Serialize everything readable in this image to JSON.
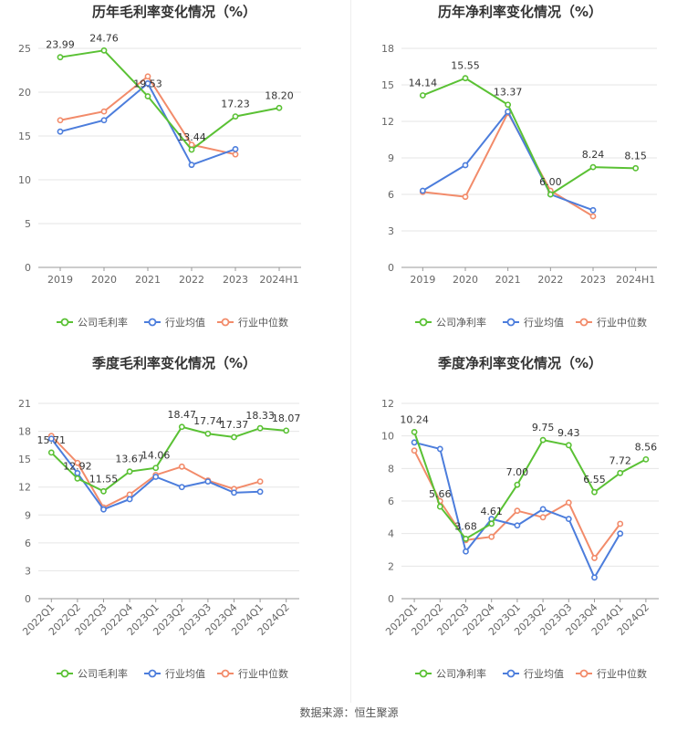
{
  "footer": {
    "source": "数据来源：恒生聚源"
  },
  "colors": {
    "company": "#5ac134",
    "industry_avg": "#4c7ddc",
    "industry_median": "#f28b6a",
    "grid": "#e6e6e6",
    "axis_text": "#666666"
  },
  "legend_labels": {
    "p1": [
      "公司毛利率",
      "行业均值",
      "行业中位数"
    ],
    "p2": [
      "公司净利率",
      "行业均值",
      "行业中位数"
    ],
    "p3": [
      "公司毛利率",
      "行业均值",
      "行业中位数"
    ],
    "p4": [
      "公司净利率",
      "行业均值",
      "行业中位数"
    ]
  },
  "chart_data": [
    {
      "type": "line",
      "title": "历年毛利率变化情况（%）",
      "categories": [
        "2019",
        "2020",
        "2021",
        "2022",
        "2023",
        "2024H1"
      ],
      "ylim": [
        0,
        25
      ],
      "yticks": [
        0,
        5,
        10,
        15,
        20,
        25
      ],
      "series": [
        {
          "name": "公司毛利率",
          "values": [
            23.99,
            24.76,
            19.53,
            13.44,
            17.23,
            18.2
          ],
          "labels": [
            "23.99",
            "24.76",
            "19.53",
            "13.44",
            "17.23",
            "18.20"
          ]
        },
        {
          "name": "行业均值",
          "values": [
            15.5,
            16.8,
            21.0,
            11.7,
            13.5,
            null
          ]
        },
        {
          "name": "行业中位数",
          "values": [
            16.8,
            17.8,
            21.8,
            14.0,
            12.9,
            null
          ]
        }
      ],
      "legend_position": "bottom",
      "grid": true
    },
    {
      "type": "line",
      "title": "历年净利率变化情况（%）",
      "categories": [
        "2019",
        "2020",
        "2021",
        "2022",
        "2023",
        "2024H1"
      ],
      "ylim": [
        0,
        18
      ],
      "yticks": [
        0,
        3,
        6,
        9,
        12,
        15,
        18
      ],
      "series": [
        {
          "name": "公司净利率",
          "values": [
            14.14,
            15.55,
            13.37,
            6.0,
            8.24,
            8.15
          ],
          "labels": [
            "14.14",
            "15.55",
            "13.37",
            "6.00",
            "8.24",
            "8.15"
          ]
        },
        {
          "name": "行业均值",
          "values": [
            6.3,
            8.4,
            12.8,
            6.0,
            4.7,
            null
          ]
        },
        {
          "name": "行业中位数",
          "values": [
            6.2,
            5.8,
            12.7,
            6.3,
            4.2,
            null
          ]
        }
      ],
      "legend_position": "bottom",
      "grid": true
    },
    {
      "type": "line",
      "title": "季度毛利率变化情况（%）",
      "categories": [
        "2022Q1",
        "2022Q2",
        "2022Q3",
        "2022Q4",
        "2023Q1",
        "2023Q2",
        "2023Q3",
        "2023Q4",
        "2024Q1",
        "2024Q2"
      ],
      "ylim": [
        0,
        21
      ],
      "yticks": [
        0,
        3,
        6,
        9,
        12,
        15,
        18,
        21
      ],
      "series": [
        {
          "name": "公司毛利率",
          "values": [
            15.71,
            12.92,
            11.55,
            13.67,
            14.06,
            18.47,
            17.74,
            17.37,
            18.33,
            18.07
          ],
          "labels": [
            "15.71",
            "12.92",
            "11.55",
            "13.67",
            "14.06",
            "18.47",
            "17.74",
            "17.37",
            "18.33",
            "18.07"
          ]
        },
        {
          "name": "行业均值",
          "values": [
            17.2,
            13.5,
            9.6,
            10.7,
            13.1,
            12.0,
            12.6,
            11.4,
            11.5,
            null
          ]
        },
        {
          "name": "行业中位数",
          "values": [
            17.5,
            14.6,
            9.8,
            11.2,
            13.3,
            14.2,
            12.7,
            11.8,
            12.6,
            null
          ]
        }
      ],
      "legend_position": "bottom",
      "grid": true
    },
    {
      "type": "line",
      "title": "季度净利率变化情况（%）",
      "categories": [
        "2022Q1",
        "2022Q2",
        "2022Q3",
        "2022Q4",
        "2023Q1",
        "2023Q2",
        "2023Q3",
        "2023Q4",
        "2024Q1",
        "2024Q2"
      ],
      "ylim": [
        0,
        12
      ],
      "yticks": [
        0,
        2,
        4,
        6,
        8,
        10,
        12
      ],
      "series": [
        {
          "name": "公司净利率",
          "values": [
            10.24,
            5.66,
            3.68,
            4.61,
            7.0,
            9.75,
            9.43,
            6.55,
            7.72,
            8.56
          ],
          "labels": [
            "10.24",
            "5.66",
            "3.68",
            "4.61",
            "7.00",
            "9.75",
            "9.43",
            "6.55",
            "7.72",
            "8.56"
          ]
        },
        {
          "name": "行业均值",
          "values": [
            9.6,
            9.2,
            2.9,
            4.9,
            4.5,
            5.5,
            4.9,
            1.3,
            4.0,
            null
          ]
        },
        {
          "name": "行业中位数",
          "values": [
            9.1,
            6.0,
            3.6,
            3.8,
            5.4,
            5.0,
            5.9,
            2.5,
            4.6,
            null
          ]
        }
      ],
      "legend_position": "bottom",
      "grid": true
    }
  ]
}
